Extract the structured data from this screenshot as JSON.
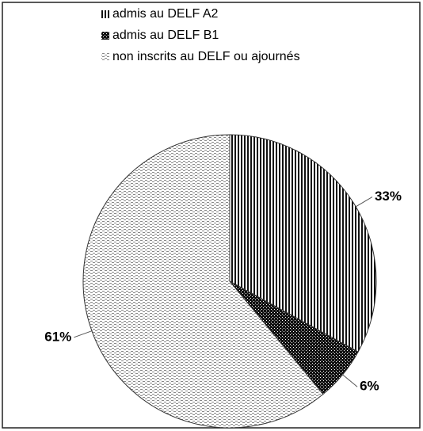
{
  "chart_data": {
    "type": "pie",
    "categories": [
      "admis au DELF A2",
      "admis au DELF B1",
      "non inscrits au DELF ou ajournés"
    ],
    "values": [
      33,
      6,
      61
    ],
    "value_labels": [
      "33%",
      "6%",
      "61%"
    ]
  }
}
